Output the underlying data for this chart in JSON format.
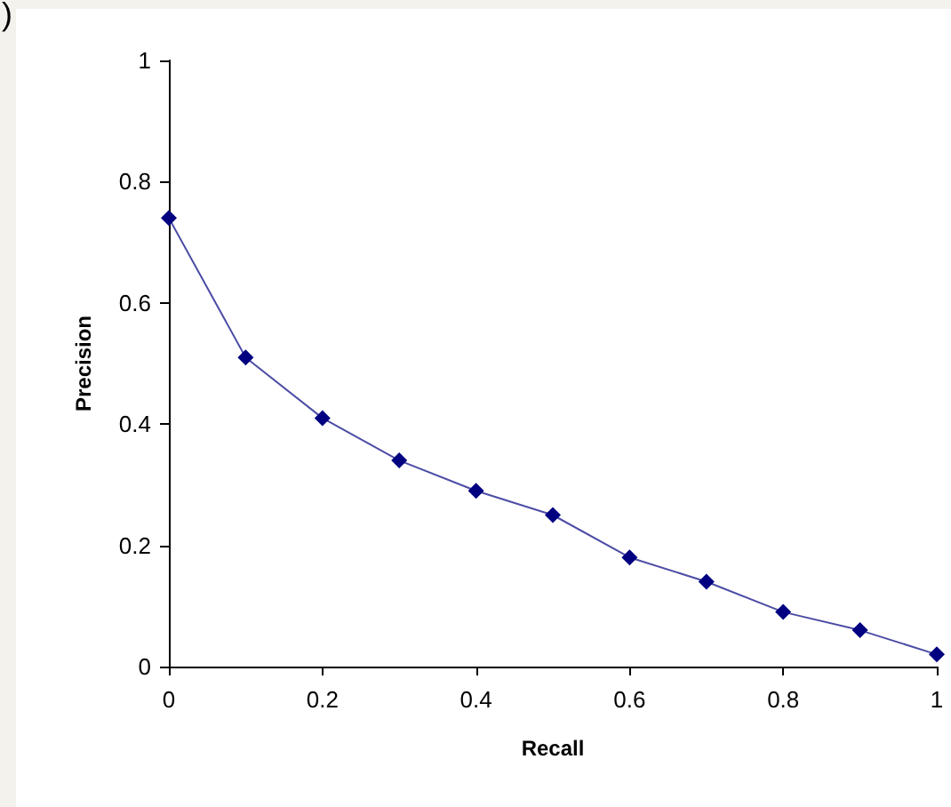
{
  "chart_data": {
    "type": "line",
    "xlabel": "Recall",
    "ylabel": "Precision",
    "annotations": [
      ")"
    ],
    "x": [
      0,
      0.1,
      0.2,
      0.3,
      0.4,
      0.5,
      0.6,
      0.7,
      0.8,
      0.9,
      1
    ],
    "series": [
      {
        "color": "#000080",
        "values": [
          0.74,
          0.51,
          0.41,
          0.34,
          0.29,
          0.25,
          0.18,
          0.14,
          0.09,
          0.06,
          0.02
        ]
      }
    ],
    "xlim": [
      0,
      1
    ],
    "xticks": [
      0,
      0.2,
      0.4,
      0.6,
      0.8,
      1
    ],
    "ylim": [
      0,
      1
    ],
    "yticks": [
      0,
      0.2,
      0.4,
      0.6,
      0.8,
      1
    ],
    "grid": false,
    "marker": "diamond",
    "line_style": "solid"
  }
}
